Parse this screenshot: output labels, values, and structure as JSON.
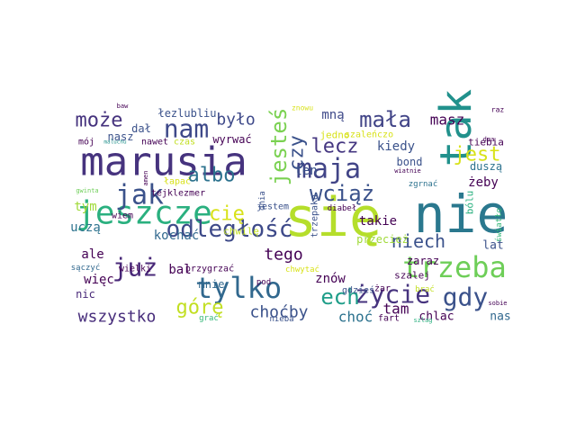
{
  "chart_data": {
    "type": "wordcloud",
    "words": [
      {
        "text": "się",
        "weight": 60,
        "color": "#b5de2b"
      },
      {
        "text": "nie",
        "weight": 58,
        "color": "#2a788e"
      },
      {
        "text": "marusia",
        "weight": 44,
        "color": "#46337e"
      },
      {
        "text": "tak",
        "weight": 48,
        "color": "#21918c"
      },
      {
        "text": "jeszcze",
        "weight": 36,
        "color": "#2ab07f"
      },
      {
        "text": "trzeba",
        "weight": 32,
        "color": "#6ece58"
      },
      {
        "text": "tylko",
        "weight": 32,
        "color": "#31688e"
      },
      {
        "text": "odległość",
        "weight": 26,
        "color": "#3e4a89"
      },
      {
        "text": "jak",
        "weight": 30,
        "color": "#3b528b"
      },
      {
        "text": "maja",
        "weight": 30,
        "color": "#414487"
      },
      {
        "text": "nam",
        "weight": 28,
        "color": "#3e4989"
      },
      {
        "text": "może",
        "weight": 22,
        "color": "#46337e"
      },
      {
        "text": "mała",
        "weight": 24,
        "color": "#414487"
      },
      {
        "text": "jesteś",
        "weight": 24,
        "color": "#7ad151"
      },
      {
        "text": "czy",
        "weight": 22,
        "color": "#3b528b"
      },
      {
        "text": "lecz",
        "weight": 22,
        "color": "#453781"
      },
      {
        "text": "wciąż",
        "weight": 24,
        "color": "#3b528b"
      },
      {
        "text": "jest",
        "weight": 22,
        "color": "#d8e219"
      },
      {
        "text": "albo",
        "weight": 22,
        "color": "#2c728e"
      },
      {
        "text": "już",
        "weight": 28,
        "color": "#482878"
      },
      {
        "text": "życie",
        "weight": 28,
        "color": "#46337e"
      },
      {
        "text": "gdy",
        "weight": 28,
        "color": "#3b528b"
      },
      {
        "text": "ech",
        "weight": 24,
        "color": "#1f9e89"
      },
      {
        "text": "górę",
        "weight": 22,
        "color": "#c2df23"
      },
      {
        "text": "cię",
        "weight": 22,
        "color": "#d8e219"
      },
      {
        "text": "niech",
        "weight": 20,
        "color": "#3b528b"
      },
      {
        "text": "tego",
        "weight": 18,
        "color": "#440154"
      },
      {
        "text": "choćby",
        "weight": 18,
        "color": "#3b528b"
      },
      {
        "text": "wszystko",
        "weight": 18,
        "color": "#472d7b"
      },
      {
        "text": "choć",
        "weight": 16,
        "color": "#2c728e"
      },
      {
        "text": "tam",
        "weight": 16,
        "color": "#440154"
      },
      {
        "text": "kochać",
        "weight": 14,
        "color": "#31688e"
      },
      {
        "text": "uczą",
        "weight": 14,
        "color": "#2c728e"
      },
      {
        "text": "tym",
        "weight": 14,
        "color": "#a0da39"
      },
      {
        "text": "ale",
        "weight": 14,
        "color": "#440154"
      },
      {
        "text": "więc",
        "weight": 14,
        "color": "#440154"
      },
      {
        "text": "nic",
        "weight": 12,
        "color": "#482878"
      },
      {
        "text": "mnie",
        "weight": 12,
        "color": "#31688e"
      },
      {
        "text": "bal",
        "weight": 14,
        "color": "#440154"
      },
      {
        "text": "było",
        "weight": 18,
        "color": "#3e4989"
      },
      {
        "text": "łezlubliu",
        "weight": 12,
        "color": "#3b528b"
      },
      {
        "text": "dał",
        "weight": 12,
        "color": "#3b528b"
      },
      {
        "text": "nasz",
        "weight": 12,
        "color": "#3b528b"
      },
      {
        "text": "nawet",
        "weight": 10,
        "color": "#440154"
      },
      {
        "text": "mój",
        "weight": 10,
        "color": "#440154"
      },
      {
        "text": "maluchu",
        "weight": 6,
        "color": "#21918c"
      },
      {
        "text": "czas",
        "weight": 10,
        "color": "#c2df23"
      },
      {
        "text": "baw",
        "weight": 7,
        "color": "#440154"
      },
      {
        "text": "wyrwać",
        "weight": 12,
        "color": "#440154"
      },
      {
        "text": "mną",
        "weight": 14,
        "color": "#3e4989"
      },
      {
        "text": "znowu",
        "weight": 8,
        "color": "#d8e219"
      },
      {
        "text": "masz",
        "weight": 16,
        "color": "#440154"
      },
      {
        "text": "raz",
        "weight": 8,
        "color": "#440154"
      },
      {
        "text": "tiebia",
        "weight": 11,
        "color": "#440154"
      },
      {
        "text": "dma",
        "weight": 7,
        "color": "#440154"
      },
      {
        "text": "kiedy",
        "weight": 14,
        "color": "#3b528b"
      },
      {
        "text": "bond",
        "weight": 12,
        "color": "#3b528b"
      },
      {
        "text": "wiatnie",
        "weight": 7,
        "color": "#440154"
      },
      {
        "text": "duszą",
        "weight": 12,
        "color": "#2c728e"
      },
      {
        "text": "żeby",
        "weight": 14,
        "color": "#440154"
      },
      {
        "text": "zgrnać",
        "weight": 9,
        "color": "#2c728e"
      },
      {
        "text": "bólu",
        "weight": 11,
        "color": "#2ab07f"
      },
      {
        "text": "światło",
        "weight": 9,
        "color": "#35b779"
      },
      {
        "text": "ten",
        "weight": 14,
        "color": "#3b528b"
      },
      {
        "text": "jedno",
        "weight": 11,
        "color": "#d8e219"
      },
      {
        "text": "szaleńczo",
        "weight": 10,
        "color": "#d8e219"
      },
      {
        "text": "trzepaka",
        "weight": 10,
        "color": "#3b528b"
      },
      {
        "text": "diabeł",
        "weight": 9,
        "color": "#440154"
      },
      {
        "text": "takie",
        "weight": 14,
        "color": "#440154"
      },
      {
        "text": "przecież",
        "weight": 12,
        "color": "#a0da39"
      },
      {
        "text": "lat",
        "weight": 13,
        "color": "#3b528b"
      },
      {
        "text": "zaraz",
        "weight": 12,
        "color": "#440154"
      },
      {
        "text": "szalej",
        "weight": 11,
        "color": "#440154"
      },
      {
        "text": "znów",
        "weight": 14,
        "color": "#440154"
      },
      {
        "text": "gdzieś",
        "weight": 10,
        "color": "#3b528b"
      },
      {
        "text": "żar",
        "weight": 10,
        "color": "#440154"
      },
      {
        "text": "brać",
        "weight": 9,
        "color": "#c2df23"
      },
      {
        "text": "fart",
        "weight": 10,
        "color": "#440154"
      },
      {
        "text": "chlac",
        "weight": 13,
        "color": "#440154"
      },
      {
        "text": "nas",
        "weight": 13,
        "color": "#31688e"
      },
      {
        "text": "sobie",
        "weight": 7,
        "color": "#440154"
      },
      {
        "text": "szlag",
        "weight": 7,
        "color": "#2ab07f"
      },
      {
        "text": "nieba",
        "weight": 9,
        "color": "#3b528b"
      },
      {
        "text": "chwytać",
        "weight": 9,
        "color": "#d8e219"
      },
      {
        "text": "pod",
        "weight": 9,
        "color": "#440154"
      },
      {
        "text": "dnia",
        "weight": 9,
        "color": "#3b528b"
      },
      {
        "text": "jestem",
        "weight": 10,
        "color": "#3b528b"
      },
      {
        "text": "chwilę",
        "weight": 11,
        "color": "#c2df23"
      },
      {
        "text": "przygrzać",
        "weight": 10,
        "color": "#440154"
      },
      {
        "text": "wielki",
        "weight": 10,
        "color": "#440154"
      },
      {
        "text": "sączyć",
        "weight": 9,
        "color": "#31688e"
      },
      {
        "text": "grać",
        "weight": 9,
        "color": "#35b779"
      },
      {
        "text": "wiem",
        "weight": 10,
        "color": "#440154"
      },
      {
        "text": "tejklezmer",
        "weight": 10,
        "color": "#440154"
      },
      {
        "text": "łapać",
        "weight": 10,
        "color": "#d8e219"
      },
      {
        "text": "gwinta",
        "weight": 7,
        "color": "#6ece58"
      },
      {
        "text": "amen",
        "weight": 7,
        "color": "#440154"
      }
    ]
  }
}
